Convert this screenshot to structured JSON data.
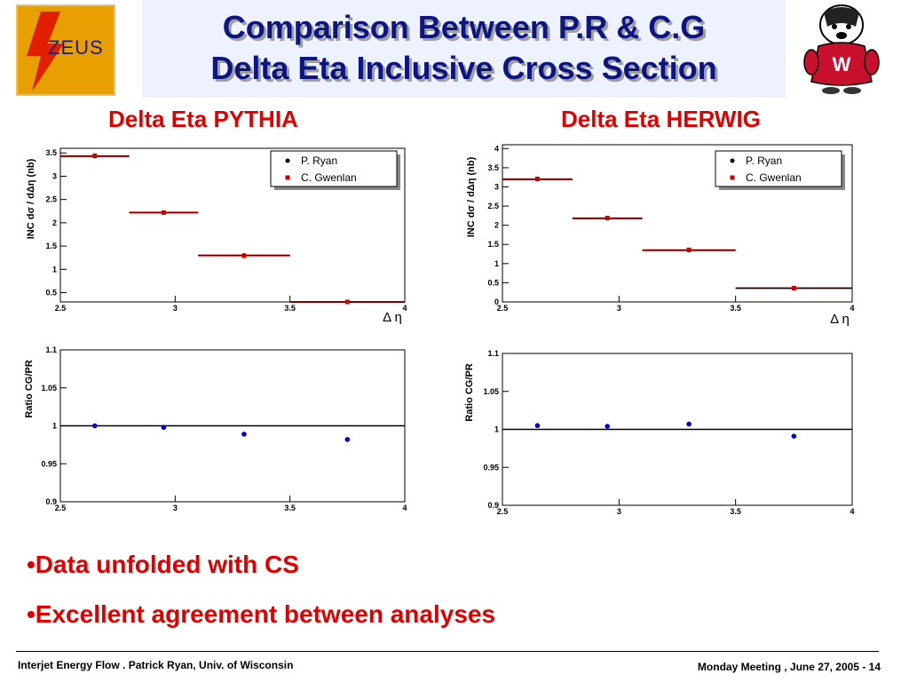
{
  "header": {
    "logo_text": "ZEUS",
    "title_line1": "Comparison Between P.R & C.G",
    "title_line2": "Delta Eta Inclusive Cross Section"
  },
  "panels": {
    "left_title": "Delta Eta PYTHIA",
    "right_title": "Delta Eta HERWIG"
  },
  "bullets": [
    "•Data unfolded with CS",
    "•Excellent agreement between analyses"
  ],
  "footer": {
    "left": "Interjet Energy Flow . Patrick Ryan, Univ. of Wisconsin",
    "right": "Monday Meeting , June 27, 2005 - 14"
  },
  "chart_data": [
    {
      "type": "scatter",
      "id": "pythia-xsec",
      "xlabel": "Δ η",
      "ylabel": "INC dσ / dΔη (nb)",
      "xlim": [
        2.5,
        4
      ],
      "ylim": [
        0.3,
        3.6
      ],
      "xticks": [
        "2.5",
        "3",
        "3.5",
        "4"
      ],
      "yticks": [
        "0.5",
        "1",
        "1.5",
        "2",
        "2.5",
        "3",
        "3.5"
      ],
      "legend": [
        "P. Ryan",
        "C. Gwenlan"
      ],
      "legend_position": "top-right",
      "bins": [
        [
          2.5,
          2.8
        ],
        [
          2.8,
          3.1
        ],
        [
          3.1,
          3.5
        ],
        [
          3.5,
          4.0
        ]
      ],
      "series": [
        {
          "name": "P. Ryan",
          "x": [
            2.65,
            2.95,
            3.3,
            3.75
          ],
          "values": [
            3.43,
            2.22,
            1.3,
            0.3
          ],
          "color": "#000000"
        },
        {
          "name": "C. Gwenlan",
          "x": [
            2.65,
            2.95,
            3.3,
            3.75
          ],
          "values": [
            3.44,
            2.22,
            1.29,
            0.3
          ],
          "color": "#cc0000"
        }
      ]
    },
    {
      "type": "scatter",
      "id": "pythia-ratio",
      "xlabel": "",
      "ylabel": "Ratio CG/PR",
      "xlim": [
        2.5,
        4
      ],
      "ylim": [
        0.9,
        1.1
      ],
      "xticks": [
        "2.5",
        "3",
        "3.5",
        "4"
      ],
      "yticks": [
        "0.9",
        "0.95",
        "1",
        "1.05",
        "1.1"
      ],
      "series": [
        {
          "x": [
            2.65,
            2.95,
            3.3,
            3.75
          ],
          "values": [
            1.0,
            0.998,
            0.989,
            0.982
          ],
          "color": "#0000dd"
        }
      ]
    },
    {
      "type": "scatter",
      "id": "herwig-xsec",
      "xlabel": "Δ η",
      "ylabel": "INC dσ / dΔη (nb)",
      "xlim": [
        2.5,
        4
      ],
      "ylim": [
        0,
        4.1
      ],
      "xticks": [
        "2.5",
        "3",
        "3.5",
        "4"
      ],
      "yticks": [
        "0",
        "0.5",
        "1",
        "1.5",
        "2",
        "2.5",
        "3",
        "3.5",
        "4"
      ],
      "legend": [
        "P. Ryan",
        "C. Gwenlan"
      ],
      "legend_position": "top-right",
      "bins": [
        [
          2.5,
          2.8
        ],
        [
          2.8,
          3.1
        ],
        [
          3.1,
          3.5
        ],
        [
          3.5,
          4.0
        ]
      ],
      "series": [
        {
          "name": "P. Ryan",
          "x": [
            2.65,
            2.95,
            3.3,
            3.75
          ],
          "values": [
            3.2,
            2.18,
            1.35,
            0.36
          ],
          "color": "#000000"
        },
        {
          "name": "C. Gwenlan",
          "x": [
            2.65,
            2.95,
            3.3,
            3.75
          ],
          "values": [
            3.21,
            2.19,
            1.36,
            0.36
          ],
          "color": "#cc0000"
        }
      ]
    },
    {
      "type": "scatter",
      "id": "herwig-ratio",
      "xlabel": "",
      "ylabel": "Ratio CG/PR",
      "xlim": [
        2.5,
        4
      ],
      "ylim": [
        0.9,
        1.1
      ],
      "xticks": [
        "2.5",
        "3",
        "3.5",
        "4"
      ],
      "yticks": [
        "0.9",
        "0.95",
        "1",
        "1.05",
        "1.1"
      ],
      "series": [
        {
          "x": [
            2.65,
            2.95,
            3.3,
            3.75
          ],
          "values": [
            1.005,
            1.004,
            1.007,
            0.991
          ],
          "color": "#0000dd"
        }
      ]
    }
  ]
}
